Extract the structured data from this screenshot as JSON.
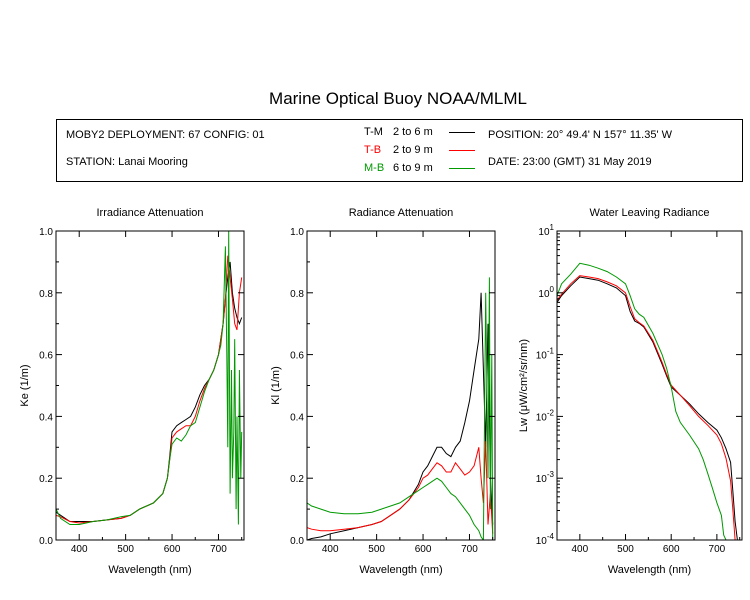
{
  "title": "Marine Optical Buoy NOAA/MLML",
  "info": {
    "deployment": "MOBY2 DEPLOYMENT: 67 CONFIG: 01",
    "station": "STATION: Lanai Mooring",
    "position": "POSITION: 20° 49.4' N   157° 11.35' W",
    "date": "DATE: 23:00 (GMT) 31 May 2019"
  },
  "legend": [
    {
      "code": "T-M",
      "range": "2 to 6  m",
      "color": "#000000"
    },
    {
      "code": "T-B",
      "range": "2 to 9  m",
      "color": "#ff0000"
    },
    {
      "code": "M-B",
      "range": "6 to 9  m",
      "color": "#009900"
    }
  ],
  "chart_data": [
    {
      "type": "line",
      "title": "Irradiance Attenuation",
      "xlabel": "Wavelength (nm)",
      "ylabel": "Ke  (1/m)",
      "xlim": [
        350,
        755
      ],
      "ylim": [
        0,
        1.0
      ],
      "xticks": [
        400,
        500,
        600,
        700
      ],
      "yticks": [
        0.0,
        0.2,
        0.4,
        0.6,
        0.8,
        1.0
      ],
      "ytick_labels": [
        "0.0",
        "0.2",
        "0.4",
        "0.6",
        "0.8",
        "1.0"
      ],
      "series": [
        {
          "color": "#000000",
          "x": [
            350,
            360,
            380,
            400,
            430,
            460,
            490,
            510,
            530,
            560,
            580,
            590,
            595,
            600,
            610,
            620,
            630,
            640,
            650,
            660,
            670,
            680,
            690,
            700,
            710,
            715,
            720,
            725,
            730,
            735,
            740,
            745,
            750
          ],
          "y": [
            0.09,
            0.08,
            0.06,
            0.06,
            0.06,
            0.065,
            0.07,
            0.08,
            0.1,
            0.12,
            0.15,
            0.2,
            0.27,
            0.35,
            0.37,
            0.38,
            0.39,
            0.4,
            0.43,
            0.47,
            0.5,
            0.52,
            0.55,
            0.6,
            0.7,
            0.78,
            0.85,
            0.9,
            0.8,
            0.75,
            0.72,
            0.7,
            0.72
          ]
        },
        {
          "color": "#ff0000",
          "x": [
            350,
            360,
            380,
            400,
            430,
            460,
            490,
            510,
            530,
            560,
            580,
            590,
            595,
            600,
            610,
            620,
            630,
            640,
            650,
            660,
            670,
            680,
            690,
            700,
            710,
            715,
            720,
            725,
            730,
            735,
            740,
            745,
            750
          ],
          "y": [
            0.08,
            0.075,
            0.06,
            0.055,
            0.06,
            0.065,
            0.07,
            0.08,
            0.1,
            0.12,
            0.15,
            0.2,
            0.26,
            0.33,
            0.35,
            0.36,
            0.37,
            0.37,
            0.4,
            0.45,
            0.49,
            0.52,
            0.55,
            0.6,
            0.7,
            0.78,
            0.92,
            0.85,
            0.78,
            0.7,
            0.68,
            0.8,
            0.85
          ]
        },
        {
          "color": "#009900",
          "x": [
            350,
            360,
            380,
            400,
            430,
            460,
            490,
            510,
            530,
            560,
            580,
            590,
            595,
            600,
            610,
            620,
            630,
            640,
            650,
            660,
            670,
            680,
            690,
            700,
            705,
            710,
            715,
            718,
            720,
            722,
            725,
            728,
            730,
            733,
            735,
            738,
            740,
            743,
            745,
            748,
            750
          ],
          "y": [
            0.1,
            0.07,
            0.05,
            0.05,
            0.06,
            0.065,
            0.075,
            0.08,
            0.1,
            0.12,
            0.15,
            0.2,
            0.26,
            0.31,
            0.33,
            0.32,
            0.34,
            0.37,
            0.38,
            0.43,
            0.48,
            0.52,
            0.55,
            0.6,
            0.63,
            0.7,
            0.95,
            0.6,
            0.3,
            1.0,
            0.15,
            0.55,
            0.2,
            0.35,
            0.65,
            0.1,
            0.4,
            0.05,
            0.55,
            0.2,
            0.35
          ]
        }
      ]
    },
    {
      "type": "line",
      "title": "Radiance Attenuation",
      "xlabel": "Wavelength (nm)",
      "ylabel": "Kl  (1/m)",
      "xlim": [
        350,
        755
      ],
      "ylim": [
        0,
        1.0
      ],
      "xticks": [
        400,
        500,
        600,
        700
      ],
      "yticks": [
        0.0,
        0.2,
        0.4,
        0.6,
        0.8,
        1.0
      ],
      "ytick_labels": [
        "0.0",
        "0.2",
        "0.4",
        "0.6",
        "0.8",
        "1.0"
      ],
      "series": [
        {
          "color": "#000000",
          "x": [
            350,
            360,
            380,
            400,
            430,
            460,
            490,
            510,
            530,
            550,
            570,
            590,
            600,
            610,
            620,
            630,
            640,
            650,
            660,
            670,
            680,
            690,
            700,
            710,
            720,
            725,
            730,
            735,
            740,
            745,
            750
          ],
          "y": [
            0.0,
            0.005,
            0.01,
            0.02,
            0.03,
            0.04,
            0.05,
            0.06,
            0.08,
            0.1,
            0.13,
            0.18,
            0.22,
            0.24,
            0.27,
            0.3,
            0.3,
            0.28,
            0.27,
            0.3,
            0.32,
            0.38,
            0.45,
            0.55,
            0.65,
            0.8,
            0.55,
            0.3,
            0.7,
            0.2,
            0.05
          ]
        },
        {
          "color": "#ff0000",
          "x": [
            350,
            360,
            380,
            400,
            430,
            460,
            490,
            510,
            530,
            550,
            570,
            590,
            600,
            610,
            620,
            630,
            640,
            650,
            660,
            670,
            680,
            690,
            700,
            710,
            720,
            725,
            730,
            735,
            740,
            745,
            750
          ],
          "y": [
            0.04,
            0.035,
            0.03,
            0.03,
            0.035,
            0.04,
            0.05,
            0.06,
            0.08,
            0.1,
            0.13,
            0.17,
            0.2,
            0.21,
            0.23,
            0.25,
            0.24,
            0.22,
            0.22,
            0.25,
            0.23,
            0.21,
            0.22,
            0.24,
            0.3,
            0.2,
            0.12,
            0.32,
            0.05,
            0.15,
            0.02
          ]
        },
        {
          "color": "#009900",
          "x": [
            350,
            360,
            380,
            400,
            430,
            460,
            490,
            510,
            530,
            550,
            570,
            590,
            600,
            610,
            620,
            630,
            640,
            650,
            660,
            670,
            680,
            690,
            700,
            710,
            720,
            725,
            730,
            735,
            740,
            743,
            745,
            748,
            750
          ],
          "y": [
            0.12,
            0.11,
            0.1,
            0.09,
            0.085,
            0.085,
            0.09,
            0.1,
            0.11,
            0.12,
            0.14,
            0.16,
            0.17,
            0.18,
            0.19,
            0.2,
            0.19,
            0.17,
            0.15,
            0.14,
            0.12,
            0.1,
            0.08,
            0.05,
            0.03,
            0.01,
            0.0,
            0.8,
            0.2,
            0.85,
            0.1,
            0.6,
            0.0
          ]
        }
      ]
    },
    {
      "type": "line",
      "title": "Water Leaving Radiance",
      "xlabel": "Wavelength (nm)",
      "ylabel": "Lw  (μW/cm²/sr/nm)",
      "yscale": "log",
      "xlim": [
        350,
        755
      ],
      "ylim": [
        0.0001,
        10
      ],
      "xticks": [
        400,
        500,
        600,
        700
      ],
      "yticks": [
        0.0001,
        0.001,
        0.01,
        0.1,
        1,
        10
      ],
      "ytick_labels": [
        {
          "base": "10",
          "exp": "-4"
        },
        {
          "base": "10",
          "exp": "-3"
        },
        {
          "base": "10",
          "exp": "-2"
        },
        {
          "base": "10",
          "exp": "-1"
        },
        {
          "base": "10",
          "exp": "0"
        },
        {
          "base": "10",
          "exp": "1"
        }
      ],
      "series": [
        {
          "color": "#000000",
          "x": [
            350,
            360,
            380,
            400,
            420,
            440,
            460,
            480,
            500,
            510,
            520,
            530,
            540,
            560,
            580,
            590,
            600,
            620,
            640,
            660,
            680,
            700,
            710,
            720,
            730,
            735,
            740,
            745
          ],
          "y": [
            0.7,
            0.9,
            1.3,
            1.8,
            1.7,
            1.6,
            1.4,
            1.2,
            0.9,
            0.5,
            0.35,
            0.32,
            0.28,
            0.16,
            0.07,
            0.045,
            0.03,
            0.022,
            0.016,
            0.011,
            0.008,
            0.006,
            0.0045,
            0.003,
            0.0018,
            0.0006,
            0.0002,
            0.0001
          ]
        },
        {
          "color": "#ff0000",
          "x": [
            350,
            360,
            380,
            400,
            420,
            440,
            460,
            480,
            500,
            510,
            520,
            530,
            540,
            560,
            580,
            590,
            600,
            620,
            640,
            660,
            680,
            700,
            710,
            720,
            730,
            735,
            740,
            745
          ],
          "y": [
            0.75,
            0.95,
            1.4,
            1.9,
            1.8,
            1.7,
            1.5,
            1.3,
            1.0,
            0.6,
            0.38,
            0.33,
            0.29,
            0.17,
            0.075,
            0.048,
            0.032,
            0.022,
            0.015,
            0.01,
            0.0072,
            0.005,
            0.0036,
            0.0021,
            0.0009,
            0.0003,
            0.0001,
            0.0001
          ]
        },
        {
          "color": "#009900",
          "x": [
            350,
            360,
            380,
            400,
            420,
            440,
            460,
            480,
            500,
            510,
            520,
            530,
            540,
            560,
            580,
            590,
            600,
            610,
            620,
            640,
            660,
            670,
            680,
            690,
            700,
            710,
            715,
            720,
            725
          ],
          "y": [
            0.9,
            1.4,
            2.0,
            3.0,
            2.8,
            2.5,
            2.2,
            1.8,
            1.4,
            0.9,
            0.55,
            0.45,
            0.4,
            0.22,
            0.1,
            0.06,
            0.03,
            0.012,
            0.008,
            0.005,
            0.003,
            0.002,
            0.0012,
            0.0007,
            0.0004,
            0.00025,
            0.00012,
            0.0001,
            0.0001
          ]
        }
      ]
    }
  ]
}
